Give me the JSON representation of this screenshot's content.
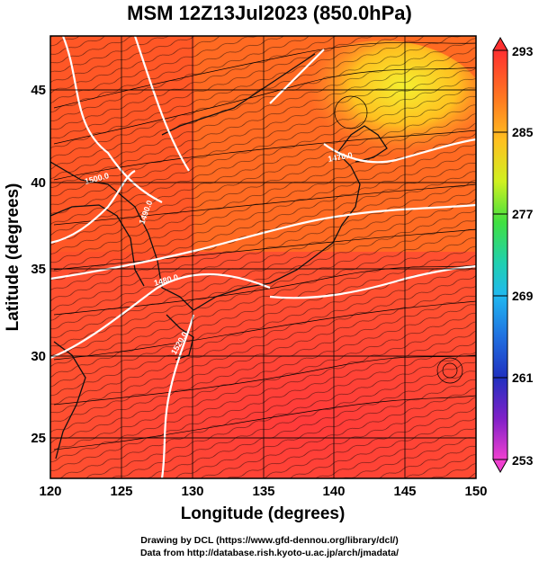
{
  "title": "MSM 12Z13Jul2023 (850.0hPa)",
  "axes": {
    "xlabel": "Longitude (degrees)",
    "ylabel": "Latitude  (degrees)",
    "xticks": [
      "120",
      "125",
      "130",
      "135",
      "140",
      "145",
      "150"
    ],
    "yticks": [
      "25",
      "30",
      "35",
      "40",
      "45"
    ]
  },
  "colorbar": {
    "ticks": [
      "293",
      "285",
      "277",
      "269",
      "261",
      "253"
    ],
    "colors": [
      "#ff5a5a",
      "#ff8a2a",
      "#ffc020",
      "#d8f020",
      "#60e040",
      "#20d0a0",
      "#20b0f0",
      "#2060e0",
      "#2030c0",
      "#a020c0",
      "#f040d0"
    ]
  },
  "contour_labels": [
    "1500.0",
    "1490.0",
    "1480.0",
    "1470.0",
    "1520.0"
  ],
  "footer": {
    "line1": "Drawing by DCL (https://www.gfd-dennou.org/library/dcl/)",
    "line2": "Data from http://database.rish.kyoto-u.ac.jp/arch/jmadata/"
  },
  "map_colors": {
    "warm": "#ff3d2a",
    "mid": "#ff7a1a",
    "cool": "#f0e020",
    "contour": "#ffffff",
    "coast": "#111111"
  }
}
